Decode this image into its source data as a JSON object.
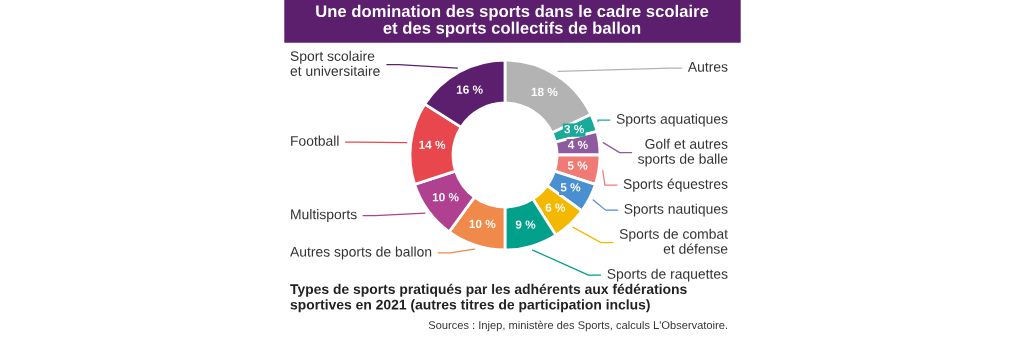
{
  "chart_data": {
    "type": "donut",
    "title": "Une domination des sports dans le cadre scolaire\net des sports collectifs de ballon",
    "subtitle": "Types de sports pratiqués par les adhérents aux fédérations\nsportives en 2021 (autres titres de participation inclus)",
    "categories": [
      "Autres",
      "Sports aquatiques",
      "Golf et autres\nsports de balle",
      "Sports équestres",
      "Sports nautiques",
      "Sports de combat\net défense",
      "Sports de raquettes",
      "Autres sports de ballon",
      "Multisports",
      "Football",
      "Sport scolaire\net universitaire"
    ],
    "values": [
      18,
      3,
      4,
      5,
      5,
      6,
      9,
      10,
      10,
      14,
      16
    ],
    "colors": [
      "#b3b3b3",
      "#1aaa9a",
      "#8e5aa0",
      "#f07b76",
      "#4a90d0",
      "#f5b800",
      "#00a08a",
      "#f08a4b",
      "#b04090",
      "#e8474e",
      "#5c1f6e"
    ],
    "value_labels": [
      "18 %",
      "3 %",
      "4 %",
      "5 %",
      "5 %",
      "6 %",
      "9 %",
      "10 %",
      "10 %",
      "14 %",
      "16 %"
    ],
    "annotations": [
      "Sources : Injep, ministère des Sports, calculs L'Observatoire."
    ]
  }
}
